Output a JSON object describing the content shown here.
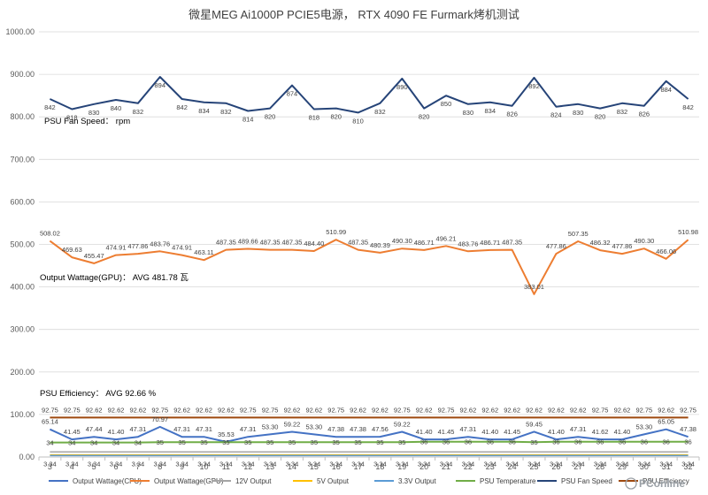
{
  "chart_data": {
    "type": "line",
    "title": "微星MEG Ai1000P PCIE5电源， RTX 4090 FE Furmark烤机测试",
    "ylim": [
      0,
      1000
    ],
    "yticks": [
      "0.00",
      "100.00",
      "200.00",
      "300.00",
      "400.00",
      "500.00",
      "600.00",
      "700.00",
      "800.00",
      "900.00",
      "1000.00"
    ],
    "grid": true,
    "legend_position": "bottom",
    "categories": [
      "3",
      "4",
      "5",
      "6",
      "7",
      "8",
      "9",
      "10",
      "11",
      "12",
      "13",
      "14",
      "15",
      "16",
      "17",
      "18",
      "19",
      "20",
      "21",
      "22",
      "23",
      "24",
      "25",
      "26",
      "27",
      "28",
      "29",
      "30",
      "31",
      "32"
    ],
    "annotations": [
      {
        "id": "fan",
        "text": "PSU Fan Speed： rpm"
      },
      {
        "id": "wattage",
        "text": "Output Wattage(GPU)： AVG 481.78 瓦"
      },
      {
        "id": "eff",
        "text": "PSU Efficiency： AVG 92.66 %"
      }
    ],
    "watermark": "PConline",
    "series": [
      {
        "name": "Output Wattage(CPU)",
        "color": "#4472C4",
        "width": 2,
        "label_pos": "above",
        "values": [
          65.14,
          41.45,
          47.44,
          41.4,
          47.31,
          70.97,
          47.31,
          47.31,
          35.53,
          47.31,
          53.3,
          59.22,
          53.3,
          47.38,
          47.38,
          47.56,
          59.22,
          41.4,
          41.45,
          47.31,
          41.4,
          41.45,
          59.45,
          41.4,
          47.31,
          41.62,
          41.4,
          53.3,
          65.05,
          47.38
        ]
      },
      {
        "name": "Output Wattage(GPU)",
        "color": "#ED7D31",
        "width": 2,
        "label_pos": "above",
        "values": [
          508.02,
          469.63,
          455.47,
          474.91,
          477.86,
          483.76,
          474.91,
          463.11,
          487.35,
          489.66,
          487.35,
          487.35,
          484.4,
          510.99,
          487.35,
          480.39,
          490.3,
          486.71,
          496.21,
          483.76,
          486.71,
          487.35,
          383.01,
          477.86,
          507.35,
          486.32,
          477.86,
          490.3,
          466.06,
          510.98
        ]
      },
      {
        "name": "12V Output",
        "color": "#A5A5A5",
        "width": 1.5,
        "label_pos": "none",
        "values": [
          11.8,
          11.8,
          11.8,
          11.8,
          11.8,
          11.8,
          11.8,
          11.8,
          11.8,
          11.8,
          11.8,
          11.8,
          11.8,
          11.8,
          11.8,
          11.8,
          11.8,
          11.8,
          11.8,
          11.8,
          11.8,
          11.8,
          11.8,
          11.8,
          11.8,
          11.8,
          11.8,
          11.8,
          11.8,
          11.8
        ]
      },
      {
        "name": "5V Output",
        "color": "#FFC000",
        "width": 1.5,
        "label_pos": "none",
        "values": [
          5.02,
          5.02,
          5.02,
          5.02,
          5.02,
          5.02,
          5.02,
          5.02,
          5.02,
          5.02,
          5.02,
          5.02,
          5.02,
          5.02,
          5.02,
          5.02,
          5.02,
          5.02,
          5.02,
          5.02,
          5.02,
          5.02,
          5.02,
          5.02,
          5.02,
          5.02,
          5.02,
          5.02,
          5.02,
          5.02
        ]
      },
      {
        "name": "3.3V Output",
        "color": "#5B9BD5",
        "width": 1.5,
        "label_pos": "below",
        "values": [
          3.34,
          3.34,
          3.34,
          3.34,
          3.34,
          3.34,
          3.34,
          3.34,
          3.34,
          3.34,
          3.34,
          3.34,
          3.34,
          3.34,
          3.34,
          3.34,
          3.34,
          3.34,
          3.34,
          3.34,
          3.34,
          3.34,
          3.34,
          3.34,
          3.34,
          3.34,
          3.34,
          3.34,
          3.34,
          3.34
        ]
      },
      {
        "name": "PSU Temperature",
        "color": "#70AD47",
        "width": 2,
        "label_pos": "middle",
        "values": [
          34,
          34,
          34,
          34,
          34,
          35,
          35,
          35,
          35,
          35,
          35,
          35,
          35,
          35,
          35,
          35,
          35,
          36,
          36,
          36,
          36,
          36,
          35,
          36,
          36,
          36,
          36,
          36,
          36,
          36
        ]
      },
      {
        "name": "PSU Fan Speed",
        "color": "#264478",
        "width": 2,
        "label_pos": "below",
        "values": [
          842,
          818,
          830,
          840,
          832,
          894,
          842,
          834,
          832,
          814,
          820,
          874,
          818,
          820,
          810,
          832,
          890,
          820,
          850,
          830,
          834,
          826,
          892,
          824,
          830,
          820,
          832,
          826,
          884,
          842
        ]
      },
      {
        "name": "PSU Efficiency",
        "color": "#9E480E",
        "width": 2,
        "label_pos": "above",
        "values": [
          92.75,
          92.75,
          92.62,
          92.62,
          92.62,
          92.75,
          92.62,
          92.62,
          92.62,
          92.75,
          92.75,
          92.62,
          92.62,
          92.75,
          92.62,
          92.62,
          92.75,
          92.62,
          92.75,
          92.62,
          92.62,
          92.62,
          92.62,
          92.62,
          92.62,
          92.75,
          92.62,
          92.75,
          92.62,
          92.75
        ]
      }
    ]
  }
}
